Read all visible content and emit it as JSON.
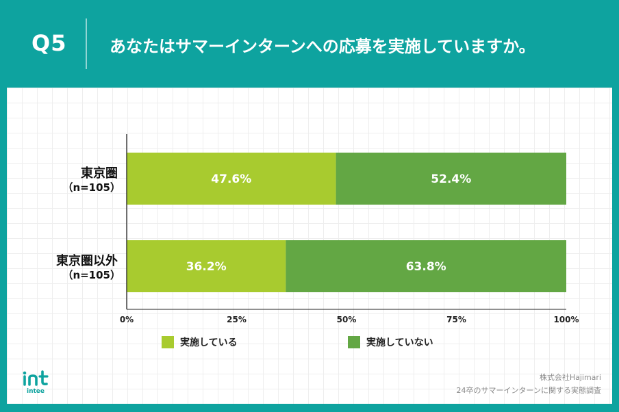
{
  "question": {
    "number": "Q5",
    "title": "あなたはサマーインターンへの応募を実施していますか。"
  },
  "chart_data": {
    "type": "bar",
    "orientation": "horizontal",
    "stacked": true,
    "categories": [
      {
        "label": "東京圏",
        "n": "（n=105）"
      },
      {
        "label": "東京圏以外",
        "n": "（n=105）"
      }
    ],
    "series": [
      {
        "name": "実施している",
        "color": "#a8cb2f",
        "values": [
          47.6,
          36.2
        ],
        "value_labels": [
          "47.6%",
          "36.2%"
        ]
      },
      {
        "name": "実施していない",
        "color": "#63a744",
        "values": [
          52.4,
          63.8
        ],
        "value_labels": [
          "52.4%",
          "63.8%"
        ]
      }
    ],
    "xlim": [
      0,
      100
    ],
    "x_ticks": [
      "0%",
      "25%",
      "50%",
      "75%",
      "100%"
    ],
    "grid": false,
    "legend": "bottom"
  },
  "logo": {
    "text": "intee"
  },
  "credit": {
    "line1": "株式会社Hajimari",
    "line2": "24卒のサマーインターンに関する実態調査"
  }
}
